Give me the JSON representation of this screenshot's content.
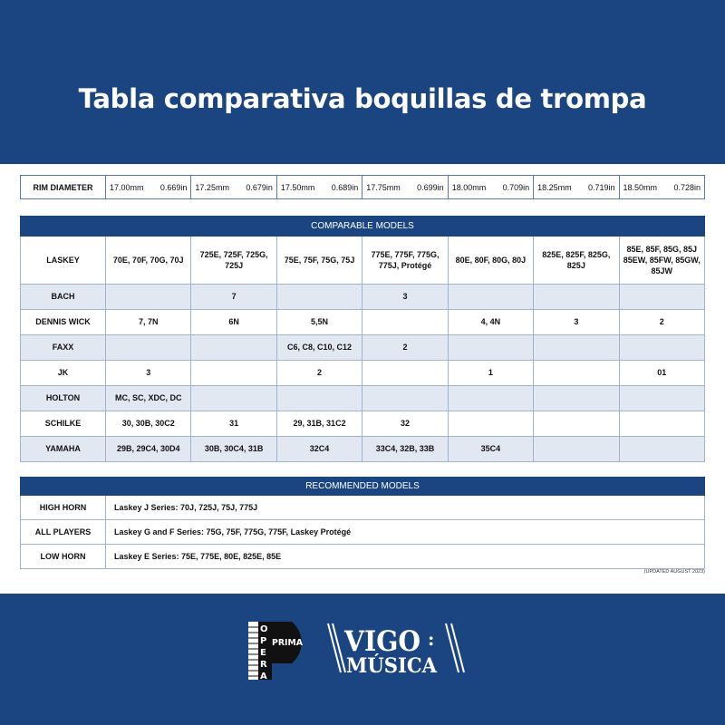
{
  "title": "Tabla comparativa boquillas de trompa",
  "rim": {
    "label": "RIM DIAMETER",
    "values": [
      {
        "mm": "17.00mm",
        "in": "0.669in"
      },
      {
        "mm": "17.25mm",
        "in": "0.679in"
      },
      {
        "mm": "17.50mm",
        "in": "0.689in"
      },
      {
        "mm": "17.75mm",
        "in": "0.699in"
      },
      {
        "mm": "18.00mm",
        "in": "0.709in"
      },
      {
        "mm": "18.25mm",
        "in": "0.719in"
      },
      {
        "mm": "18.50mm",
        "in": "0.728in"
      }
    ]
  },
  "comparable": {
    "header": "COMPARABLE MODELS",
    "rows": [
      {
        "brand": "LASKEY",
        "cells": [
          "70E, 70F, 70G, 70J",
          "725E, 725F, 725G, 725J",
          "75E, 75F, 75G, 75J",
          "775E, 775F, 775G, 775J, Protégé",
          "80E, 80F, 80G, 80J",
          "825E, 825F, 825G, 825J",
          "85E, 85F, 85G, 85J 85EW, 85FW, 85GW, 85JW"
        ]
      },
      {
        "brand": "BACH",
        "cells": [
          "",
          "7",
          "",
          "3",
          "",
          "",
          ""
        ]
      },
      {
        "brand": "DENNIS WICK",
        "cells": [
          "7, 7N",
          "6N",
          "5,5N",
          "",
          "4, 4N",
          "3",
          "2"
        ]
      },
      {
        "brand": "FAXX",
        "cells": [
          "",
          "",
          "C6, C8, C10, C12",
          "2",
          "",
          "",
          ""
        ]
      },
      {
        "brand": "JK",
        "cells": [
          "3",
          "",
          "2",
          "",
          "1",
          "",
          "01"
        ]
      },
      {
        "brand": "HOLTON",
        "cells": [
          "MC, SC, XDC, DC",
          "",
          "",
          "",
          "",
          "",
          ""
        ]
      },
      {
        "brand": "SCHILKE",
        "cells": [
          "30, 30B, 30C2",
          "31",
          "29, 31B, 31C2",
          "32",
          "",
          "",
          ""
        ]
      },
      {
        "brand": "YAMAHA",
        "cells": [
          "29B, 29C4, 30D4",
          "30B, 30C4, 31B",
          "32C4",
          "33C4, 32B, 33B",
          "35C4",
          "",
          ""
        ]
      }
    ]
  },
  "recommended": {
    "header": "RECOMMENDED MODELS",
    "rows": [
      {
        "label": "HIGH HORN",
        "text": "Laskey J Series: 70J, 725J, 75J, 775J"
      },
      {
        "label": "ALL PLAYERS",
        "text": "Laskey G and F Series: 75G, 75F, 775G, 775F, Laskey Protégé"
      },
      {
        "label": "LOW HORN",
        "text": "Laskey E Series: 75E, 775E, 80E, 825E, 85E"
      }
    ]
  },
  "updated": "(UPDATED AUGUST 2023)",
  "logos": {
    "opera_prima": "OPERA PRIMA",
    "vigo_musica": "VIGO MÚSICA"
  },
  "colors": {
    "brand_blue": "#1a4580",
    "row_shade": "#e1e8f1"
  }
}
